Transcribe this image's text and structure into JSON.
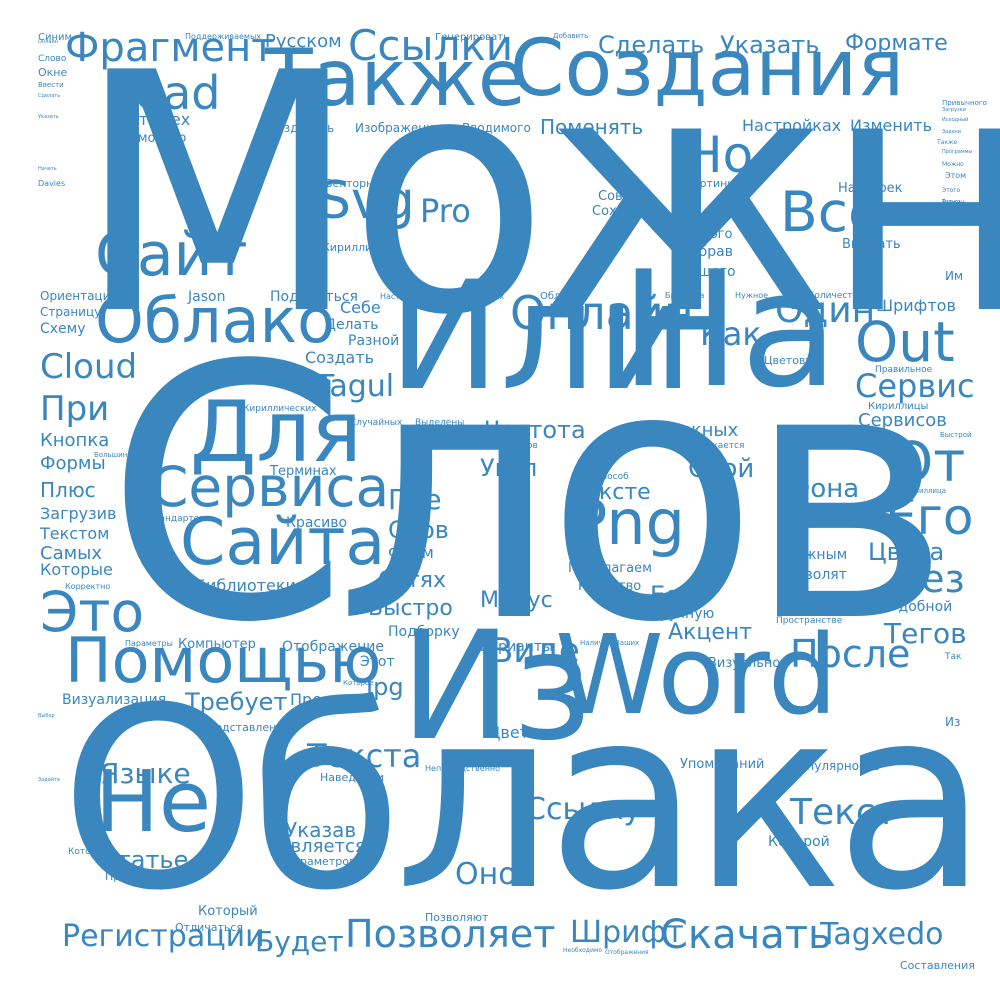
{
  "color": "#3a86be",
  "background": "#ffffff",
  "words": [
    "Можно",
    "Слов",
    "Облака",
    "Из",
    "Word",
    "Или",
    "На",
    "Создания",
    "Также",
    "Для",
    "Облако",
    "Не",
    "Помощью",
    "Сайта",
    "Сайт",
    "Сервиса",
    "Это",
    "Png",
    "Svg",
    "Все",
    "Но",
    "Онлайн",
    "Out",
    "От",
    "Его",
    "Ссылки",
    "Фрагмент",
    "Lead",
    "Позволяет",
    "Скачать",
    "Регистрации",
    "Текст",
    "Текста",
    "Языке",
    "Ссылку",
    "Cloud",
    "При",
    "Tagul",
    "Сервис",
    "Без",
    "Tagxedo",
    "После",
    "Виде",
    "Будет",
    "Шрифт",
    "Оно",
    "Один",
    "Как",
    "Pro",
    "Сделать",
    "Указать",
    "Формате",
    "Русском",
    "Поменять",
    "Статье",
    "Есть",
    "Тегов",
    "Цвета",
    "Фона",
    "Тексте",
    "Слов",
    "Где",
    "Частота",
    "Угол",
    "Свой",
    "Важных",
    "Сетях",
    "Быстро",
    "Минус",
    "Акцент",
    "Jpg",
    "Требует",
    "Простых",
    "Цветом",
    "Указав",
    "Является",
    "Кнопка",
    "Формы",
    "Плюс",
    "Загрузив",
    "Текстом",
    "Самых",
    "Которые",
    "Настройках",
    "Изменить",
    "Четырех",
    "Помощью",
    "Создавать",
    "Изображения",
    "Вводимого",
    "Совсем",
    "Сохранить",
    "Одного",
    "Выбрав",
    "Вашего",
    "Картинки",
    "Настроек",
    "Выбрать",
    "Векторный",
    "Кириллице",
    "Себе",
    "Делать",
    "Разной",
    "Создать",
    "Поделиться",
    "Jason",
    "Ориентацию",
    "Страницу",
    "Схему",
    "Шрифтов",
    "Сервисов",
    "Нужным",
    "Позволят",
    "Предлагаем",
    "Качество",
    "Библиотеки",
    "Форм",
    "Красиво",
    "Терминах",
    "Стандартен",
    "Вручную",
    "Удобной",
    "Варианты",
    "Подборку",
    "Отображение",
    "Этот",
    "Компьютер",
    "Визуализация",
    "Представленной",
    "Наведении",
    "Упоминаний",
    "Популярность",
    "Которой",
    "Параметров",
    "Которых",
    "Правильного",
    "Который",
    "Отличаться",
    "Позволяют",
    "Составления",
    "Генерировать",
    "Поддерживаемых",
    "Добавить",
    "Синим",
    "Слово",
    "Окне",
    "Ввести",
    "Davies",
    "Количество",
    "Цветовую",
    "Правильное",
    "Кириллицы",
    "Визуально",
    "Пространстве",
    "Отображается",
    "Аккаунтов",
    "Способ",
    "Случайных",
    "Выделены",
    "Кириллических",
    "Настройки",
    "Социальных",
    "Облака",
    "Браузера",
    "Нужное",
    "Им",
    "Из",
    "Так",
    "Этом",
    "Файл",
    "Корректно",
    "Параметры",
    "Горизонтально",
    "Непосредственно",
    "Наличие",
    "Ваших",
    "Необходимо",
    "Отображения",
    "Быстрой",
    "Кириллица",
    "Большинство",
    "Также",
    "Которое",
    "Привычного",
    "Версии",
    "Создайте",
    "Можно",
    "Этого",
    "Только",
    "Сделать",
    "Задайте",
    "Указать",
    "Начать",
    "Выбор",
    "Задачи",
    "Программы",
    "Загрузки",
    "Исходный",
    "Онлайн",
    "Регистрируем"
  ]
}
